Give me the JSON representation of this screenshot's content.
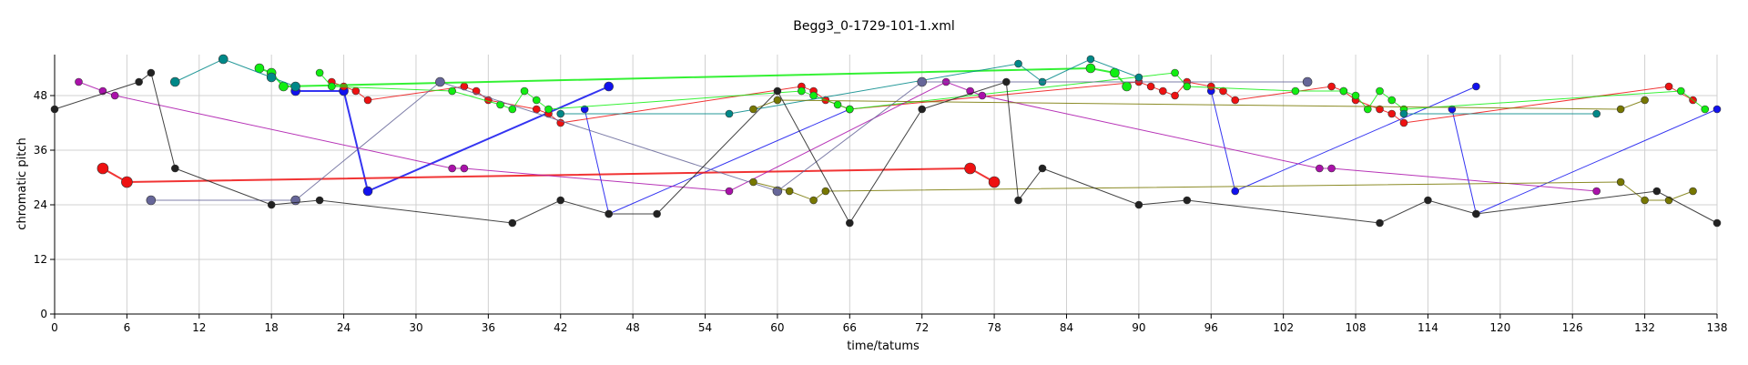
{
  "chart_data": {
    "type": "scatter",
    "title": "Begg3_0-1729-101-1.xml",
    "xlabel": "time/tatums",
    "ylabel": "chromatic pitch",
    "xlim": [
      0,
      138
    ],
    "ylim": [
      0,
      57
    ],
    "x_ticks": [
      0,
      6,
      12,
      18,
      24,
      30,
      36,
      42,
      48,
      54,
      60,
      66,
      72,
      78,
      84,
      90,
      96,
      102,
      108,
      114,
      120,
      126,
      132,
      138
    ],
    "y_ticks": [
      0,
      12,
      24,
      36,
      48
    ],
    "grid": true,
    "legend": "none",
    "series": [
      {
        "color": "#1111ee",
        "width": 2,
        "size": 5,
        "points": [
          [
            20,
            49
          ],
          [
            24,
            49
          ],
          [
            26,
            27
          ],
          [
            46,
            50
          ]
        ]
      },
      {
        "color": "#1111ee",
        "width": 1,
        "size": 4,
        "points": [
          [
            44,
            45
          ],
          [
            46,
            22
          ],
          [
            66,
            45
          ]
        ]
      },
      {
        "color": "#1111ee",
        "width": 1,
        "size": 4,
        "points": [
          [
            96,
            49
          ],
          [
            98,
            27
          ],
          [
            118,
            50
          ]
        ]
      },
      {
        "color": "#1111ee",
        "width": 1,
        "size": 4,
        "points": [
          [
            116,
            45
          ],
          [
            118,
            22
          ],
          [
            138,
            45
          ]
        ]
      },
      {
        "color": "#ee1111",
        "width": 2,
        "size": 6,
        "points": [
          [
            4,
            32
          ],
          [
            6,
            29
          ],
          [
            76,
            32
          ],
          [
            78,
            29
          ]
        ]
      },
      {
        "color": "#ee1111",
        "width": 1,
        "size": 4,
        "points": [
          [
            23,
            51
          ],
          [
            24,
            50
          ],
          [
            25,
            49
          ],
          [
            26,
            47
          ],
          [
            34,
            50
          ],
          [
            35,
            49
          ],
          [
            36,
            47
          ],
          [
            40,
            45
          ],
          [
            41,
            44
          ],
          [
            42,
            42
          ],
          [
            62,
            50
          ],
          [
            63,
            49
          ],
          [
            64,
            47
          ],
          [
            66,
            45
          ],
          [
            90,
            51
          ],
          [
            91,
            50
          ],
          [
            92,
            49
          ],
          [
            93,
            48
          ],
          [
            94,
            51
          ],
          [
            96,
            50
          ],
          [
            97,
            49
          ],
          [
            98,
            47
          ],
          [
            106,
            50
          ],
          [
            107,
            49
          ],
          [
            108,
            47
          ],
          [
            110,
            45
          ],
          [
            111,
            44
          ],
          [
            112,
            42
          ],
          [
            134,
            50
          ],
          [
            136,
            47
          ]
        ]
      },
      {
        "color": "#11ee11",
        "width": 2,
        "size": 5,
        "points": [
          [
            17,
            54
          ],
          [
            18,
            53
          ],
          [
            19,
            50
          ],
          [
            86,
            54
          ],
          [
            88,
            53
          ],
          [
            89,
            50
          ]
        ]
      },
      {
        "color": "#11ee11",
        "width": 1,
        "size": 4,
        "points": [
          [
            22,
            53
          ],
          [
            23,
            50
          ],
          [
            33,
            49
          ],
          [
            37,
            46
          ],
          [
            38,
            45
          ],
          [
            39,
            49
          ],
          [
            40,
            47
          ],
          [
            41,
            45
          ],
          [
            62,
            49
          ],
          [
            63,
            48
          ],
          [
            65,
            46
          ],
          [
            66,
            45
          ],
          [
            93,
            53
          ],
          [
            94,
            50
          ],
          [
            103,
            49
          ],
          [
            107,
            49
          ],
          [
            108,
            48
          ],
          [
            109,
            45
          ],
          [
            110,
            49
          ],
          [
            111,
            47
          ],
          [
            112,
            45
          ],
          [
            135,
            49
          ],
          [
            137,
            45
          ]
        ]
      },
      {
        "color": "#008888",
        "width": 1,
        "size": 5,
        "points": [
          [
            10,
            51
          ],
          [
            14,
            56
          ],
          [
            18,
            52
          ],
          [
            20,
            50
          ]
        ]
      },
      {
        "color": "#008888",
        "width": 1,
        "size": 4,
        "points": [
          [
            42,
            44
          ],
          [
            56,
            44
          ],
          [
            80,
            55
          ],
          [
            82,
            51
          ],
          [
            86,
            56
          ],
          [
            90,
            52
          ]
        ]
      },
      {
        "color": "#008888",
        "width": 1,
        "size": 4,
        "points": [
          [
            112,
            44
          ],
          [
            128,
            44
          ]
        ]
      },
      {
        "color": "#aa11aa",
        "width": 1,
        "size": 4,
        "points": [
          [
            2,
            51
          ],
          [
            4,
            49
          ],
          [
            5,
            48
          ],
          [
            33,
            32
          ],
          [
            34,
            32
          ],
          [
            56,
            27
          ],
          [
            74,
            51
          ],
          [
            76,
            49
          ],
          [
            77,
            48
          ],
          [
            105,
            32
          ],
          [
            106,
            32
          ],
          [
            128,
            27
          ]
        ]
      },
      {
        "color": "#666699",
        "width": 1,
        "size": 5,
        "points": [
          [
            8,
            25
          ],
          [
            20,
            25
          ],
          [
            32,
            51
          ],
          [
            60,
            27
          ],
          [
            72,
            51
          ],
          [
            104,
            51
          ]
        ]
      },
      {
        "color": "#777700",
        "width": 1,
        "size": 4,
        "points": [
          [
            58,
            29
          ],
          [
            61,
            27
          ],
          [
            63,
            25
          ],
          [
            64,
            27
          ],
          [
            130,
            29
          ],
          [
            132,
            25
          ],
          [
            134,
            25
          ],
          [
            136,
            27
          ]
        ]
      },
      {
        "color": "#777700",
        "width": 1,
        "size": 4,
        "points": [
          [
            58,
            45
          ],
          [
            60,
            47
          ],
          [
            130,
            45
          ],
          [
            132,
            47
          ]
        ]
      },
      {
        "color": "#222222",
        "width": 1,
        "size": 4,
        "points": [
          [
            0,
            45
          ],
          [
            7,
            51
          ],
          [
            8,
            53
          ],
          [
            10,
            32
          ],
          [
            18,
            24
          ],
          [
            22,
            25
          ],
          [
            38,
            20
          ],
          [
            42,
            25
          ],
          [
            46,
            22
          ],
          [
            50,
            22
          ],
          [
            60,
            49
          ],
          [
            66,
            20
          ],
          [
            72,
            45
          ],
          [
            79,
            51
          ],
          [
            80,
            25
          ],
          [
            82,
            32
          ],
          [
            90,
            24
          ],
          [
            94,
            25
          ],
          [
            110,
            20
          ],
          [
            114,
            25
          ],
          [
            118,
            22
          ],
          [
            133,
            27
          ],
          [
            138,
            20
          ]
        ]
      }
    ]
  }
}
